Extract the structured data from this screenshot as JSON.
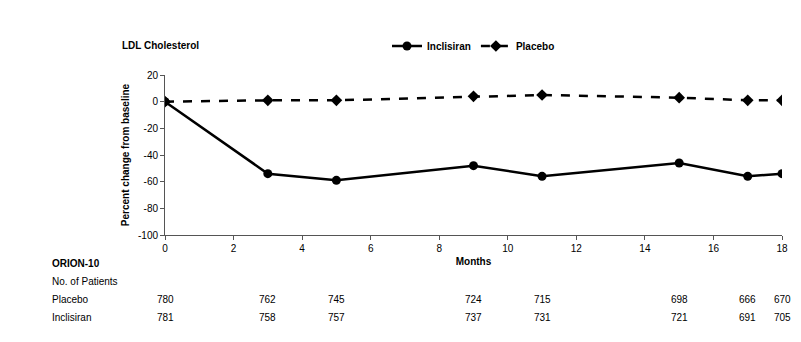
{
  "chart_data": {
    "type": "line",
    "title": "LDL Cholesterol",
    "x_label": "Months",
    "y_label": "Percent change from baseline",
    "x": [
      0,
      3,
      5,
      9,
      11,
      15,
      17,
      18
    ],
    "series": [
      {
        "name": "Inclisiran",
        "color": "#000000",
        "marker": "circle",
        "line_style": "solid",
        "values": [
          0,
          -54,
          -59,
          -48,
          -56,
          -46,
          -56,
          -54
        ]
      },
      {
        "name": "Placebo",
        "color": "#000000",
        "marker": "diamond",
        "line_style": "dash",
        "values": [
          0,
          1,
          1,
          4,
          5,
          3,
          1,
          1
        ]
      }
    ],
    "xlim": [
      0,
      18
    ],
    "xticks": [
      0,
      2,
      4,
      6,
      8,
      10,
      12,
      14,
      16,
      18
    ],
    "ylim": [
      -100,
      20
    ],
    "yticks": [
      -100,
      -80,
      -60,
      -40,
      -20,
      0,
      20
    ],
    "grid": false,
    "legend": "top",
    "patients_table": {
      "title": "ORION-10",
      "subtitle": "No. of Patients",
      "x": [
        0,
        3,
        5,
        9,
        11,
        15,
        17,
        18
      ],
      "rows": [
        {
          "name": "Placebo",
          "values": [
            780,
            762,
            745,
            724,
            715,
            698,
            666,
            670
          ]
        },
        {
          "name": "Inclisiran",
          "values": [
            781,
            758,
            757,
            737,
            731,
            721,
            691,
            705
          ]
        }
      ]
    }
  }
}
